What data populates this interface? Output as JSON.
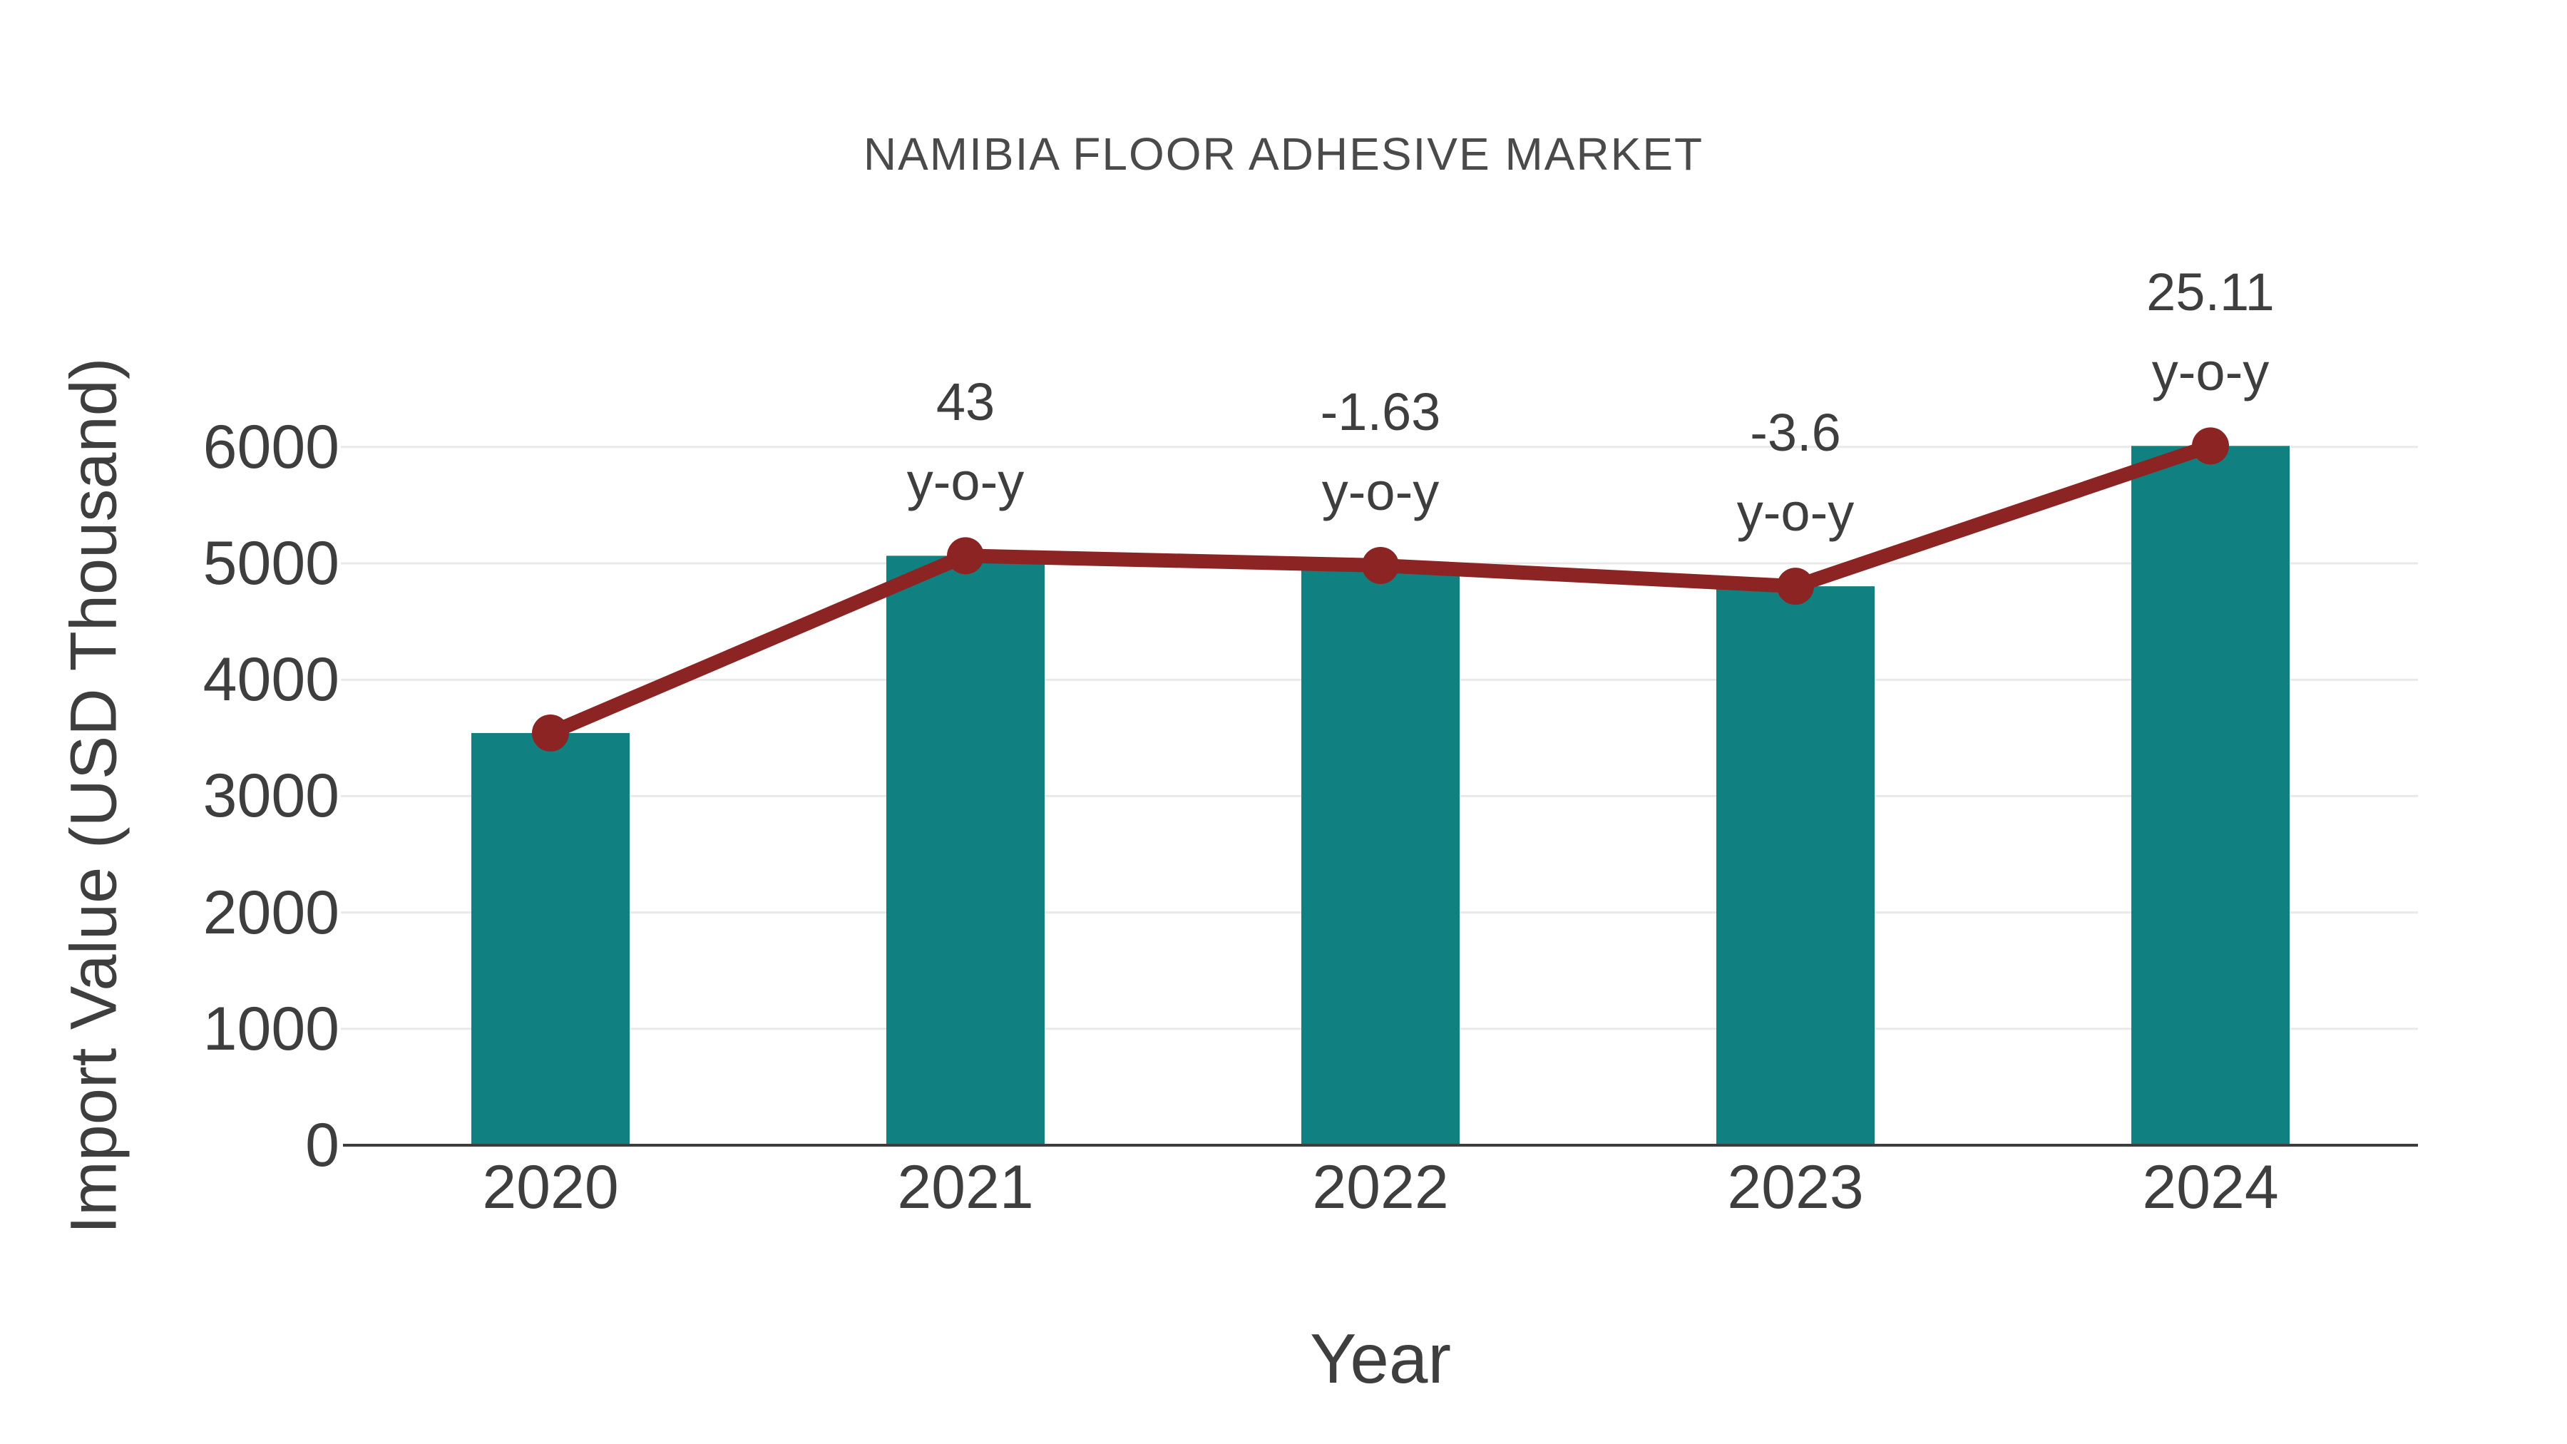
{
  "chart_data": {
    "type": "bar",
    "title": "NAMIBIA FLOOR ADHESIVE MARKET",
    "xlabel": "Year",
    "ylabel": "Import Value (USD Thousand)",
    "categories": [
      "2020",
      "2021",
      "2022",
      "2023",
      "2024"
    ],
    "series": [
      {
        "name": "Import Value (USD Thousand)",
        "type": "bar",
        "values": [
          3542,
          5065,
          4982,
          4803,
          6009
        ]
      },
      {
        "name": "y-o-y change",
        "type": "line",
        "values": [
          3542,
          5065,
          4982,
          4803,
          6009
        ],
        "yoy_percent": [
          null,
          43,
          -1.63,
          -3.6,
          25.11
        ]
      }
    ],
    "annotations": [
      {
        "category": "2021",
        "line1": "43",
        "line2": "y-o-y"
      },
      {
        "category": "2022",
        "line1": "-1.63",
        "line2": "y-o-y"
      },
      {
        "category": "2023",
        "line1": "-3.6",
        "line2": "y-o-y"
      },
      {
        "category": "2024",
        "line1": "25.11",
        "line2": "y-o-y"
      }
    ],
    "yticks": [
      0,
      1000,
      2000,
      3000,
      4000,
      5000,
      6000
    ],
    "ylim": [
      0,
      6600
    ],
    "grid": true,
    "legend_position": "none",
    "colors": {
      "bar": "#108080",
      "line": "#8c2424",
      "grid": "#e9e9e9",
      "axis": "#3d3d3d",
      "text": "#3e3e3e",
      "title": "#4a4a4a"
    }
  }
}
